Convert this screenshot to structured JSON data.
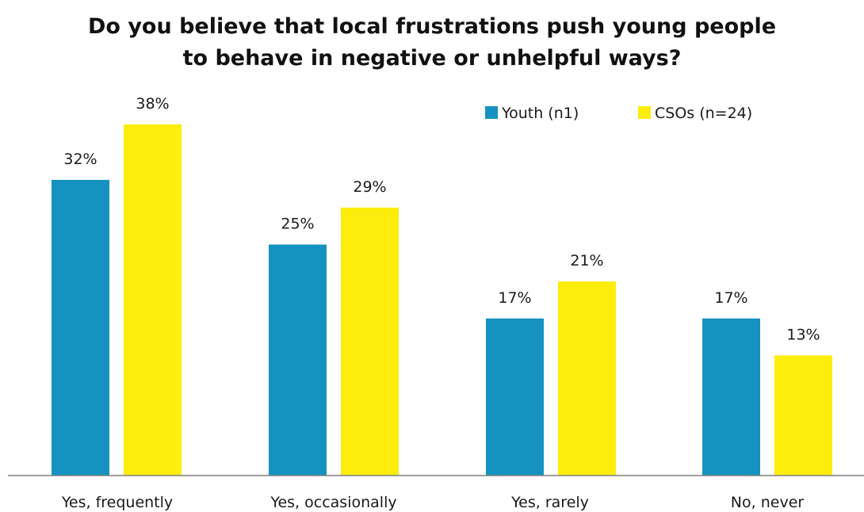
{
  "chart_data": {
    "type": "bar",
    "title_lines": [
      "Do you believe that local frustrations push young people",
      "to behave in negative or unhelpful ways?"
    ],
    "categories": [
      "Yes, frequently",
      "Yes, occasionally",
      "Yes, rarely",
      "No, never"
    ],
    "series": [
      {
        "name": "Youth (n1)",
        "color": "#1592c0",
        "values": [
          32,
          25,
          17,
          17
        ],
        "labels": [
          "32%",
          "25%",
          "17%",
          "17%"
        ]
      },
      {
        "name": "CSOs (n=24)",
        "color": "#fced0d",
        "values": [
          38,
          29,
          21,
          13
        ],
        "labels": [
          "38%",
          "29%",
          "21%",
          "13%"
        ]
      }
    ],
    "unit": "%",
    "ylim": [
      0,
      38
    ],
    "grid": false,
    "legend_position": "top-right",
    "axis_color": "#7f7f7f"
  }
}
